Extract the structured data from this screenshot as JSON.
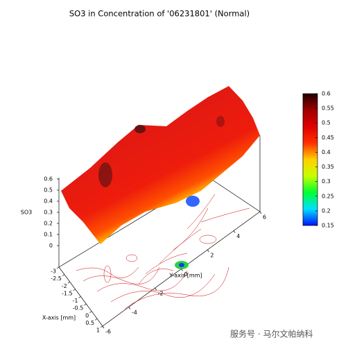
{
  "chart_data": {
    "type": "surface",
    "title": "SO3 in Concentration of '06231801' (Normal)",
    "xlabel": "X-axis [mm]",
    "ylabel": "Y-axis [mm]",
    "zlabel": "SO3",
    "xlim": [
      -3,
      1
    ],
    "xticks": [
      -3,
      -2.5,
      -2,
      -1.5,
      -1,
      -0.5,
      0,
      0.5,
      1
    ],
    "ylim": [
      -6,
      6
    ],
    "yticks": [
      -6,
      -4,
      -2,
      0,
      2,
      4,
      6
    ],
    "zlim": [
      0,
      0.6
    ],
    "zticks": [
      0,
      0.1,
      0.2,
      0.3,
      0.4,
      0.5,
      0.6
    ],
    "colorbar": {
      "lim": [
        0.15,
        0.6
      ],
      "ticks": [
        0.15,
        0.2,
        0.25,
        0.3,
        0.35,
        0.4,
        0.45,
        0.5,
        0.55,
        0.6
      ],
      "colors": [
        "#0010ff",
        "#00e0ff",
        "#00ff30",
        "#c8ff00",
        "#ffd000",
        "#ff3000",
        "#e00000",
        "#a00000",
        "#200000"
      ]
    }
  },
  "watermark": "服务号 · 马尔文帕纳科"
}
